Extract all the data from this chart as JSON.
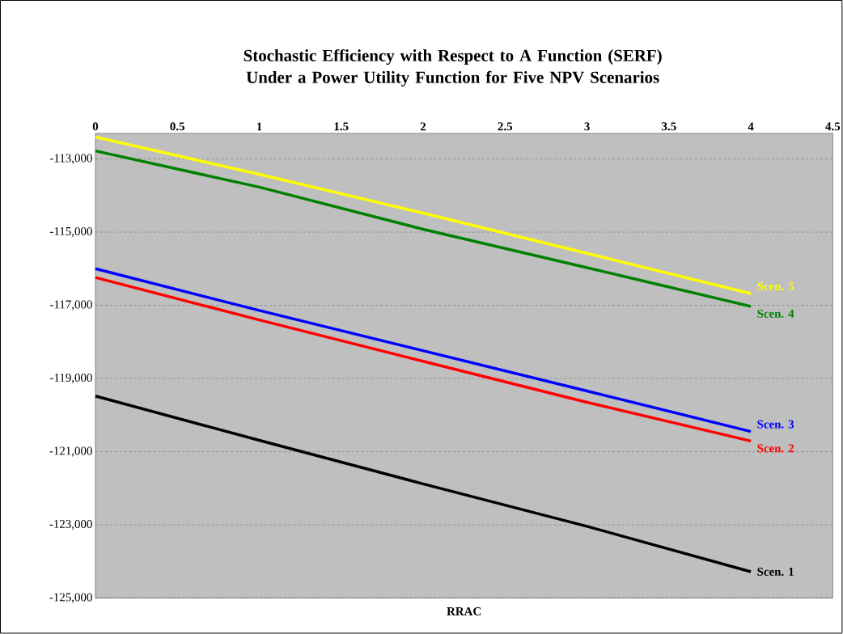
{
  "chart_data": {
    "type": "line",
    "title": "Stochastic Efficiency with Respect to A Function (SERF) Under a Power Utility Function for Five NPV Scenarios",
    "xlabel": "RRAC",
    "x": [
      0,
      1,
      2,
      3,
      4
    ],
    "series": [
      {
        "name": "Scen. 1",
        "color": "#000000",
        "values": [
          -119480,
          -120690,
          -121880,
          -123040,
          -124280
        ]
      },
      {
        "name": "Scen. 2",
        "color": "#ff0000",
        "values": [
          -116240,
          -117400,
          -118530,
          -119650,
          -120710
        ]
      },
      {
        "name": "Scen. 3",
        "color": "#0000ff",
        "values": [
          -116000,
          -117140,
          -118240,
          -119340,
          -120450
        ]
      },
      {
        "name": "Scen. 4",
        "color": "#008000",
        "values": [
          -112780,
          -113770,
          -114920,
          -115970,
          -117030
        ]
      },
      {
        "name": "Scen. 5",
        "color": "#ffff00",
        "values": [
          -112400,
          -113420,
          -114480,
          -115580,
          -116680
        ]
      }
    ],
    "xlim": [
      0,
      4.5
    ],
    "ylim": [
      -125000,
      -112300
    ],
    "xticks": [
      0,
      0.5,
      1,
      1.5,
      2,
      2.5,
      3,
      3.5,
      4,
      4.5
    ],
    "yticks": [
      {
        "value": -113000,
        "label": "-113,000"
      },
      {
        "value": -115000,
        "label": "-115,000"
      },
      {
        "value": -117000,
        "label": "-117,000"
      },
      {
        "value": -119000,
        "label": "-119,000"
      },
      {
        "value": -121000,
        "label": "-121,000"
      },
      {
        "value": -123000,
        "label": "-123,000"
      },
      {
        "value": -125000,
        "label": "-125,000"
      }
    ],
    "grid": "y",
    "marker": "none",
    "line_style": "solid"
  }
}
